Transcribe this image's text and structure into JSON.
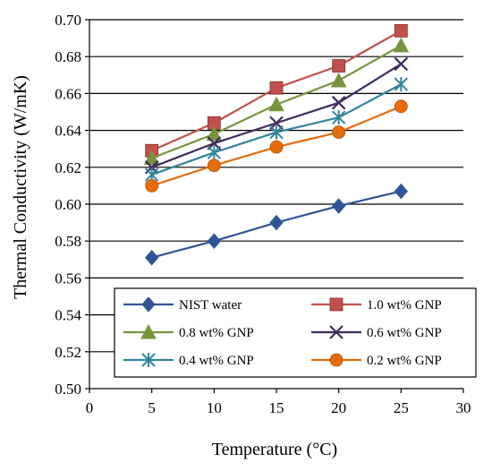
{
  "chart_data": {
    "type": "line",
    "title": "",
    "xlabel": "Temperature (°C)",
    "ylabel": "Thermal Conductivity  (W/mK)",
    "xlim": [
      0,
      30
    ],
    "ylim": [
      0.5,
      0.7
    ],
    "x_ticks": [
      "0",
      "5",
      "10",
      "15",
      "20",
      "25",
      "30"
    ],
    "y_ticks": [
      "0.50",
      "0.52",
      "0.54",
      "0.56",
      "0.58",
      "0.60",
      "0.62",
      "0.64",
      "0.66",
      "0.68",
      "0.70"
    ],
    "grid": "horizontal",
    "legend_position": "bottom-inside",
    "x": [
      5,
      10,
      15,
      20,
      25
    ],
    "series": [
      {
        "name": "NIST water",
        "values": [
          0.571,
          0.58,
          0.59,
          0.599,
          0.607
        ],
        "color": "#2f5597",
        "marker": "diamond"
      },
      {
        "name": "1.0 wt% GNP",
        "values": [
          0.629,
          0.644,
          0.663,
          0.675,
          0.694
        ],
        "color": "#c0504d",
        "marker": "square"
      },
      {
        "name": "0.8 wt% GNP",
        "values": [
          0.625,
          0.638,
          0.654,
          0.667,
          0.686
        ],
        "color": "#77933c",
        "marker": "triangle"
      },
      {
        "name": "0.6 wt% GNP",
        "values": [
          0.62,
          0.633,
          0.644,
          0.655,
          0.676
        ],
        "color": "#3f2a5c",
        "marker": "x"
      },
      {
        "name": "0.4 wt% GNP",
        "values": [
          0.616,
          0.628,
          0.639,
          0.647,
          0.665
        ],
        "color": "#31859c",
        "marker": "asterisk"
      },
      {
        "name": "0.2 wt% GNP",
        "values": [
          0.61,
          0.621,
          0.631,
          0.639,
          0.653
        ],
        "color": "#e46c0a",
        "marker": "circle"
      }
    ]
  }
}
